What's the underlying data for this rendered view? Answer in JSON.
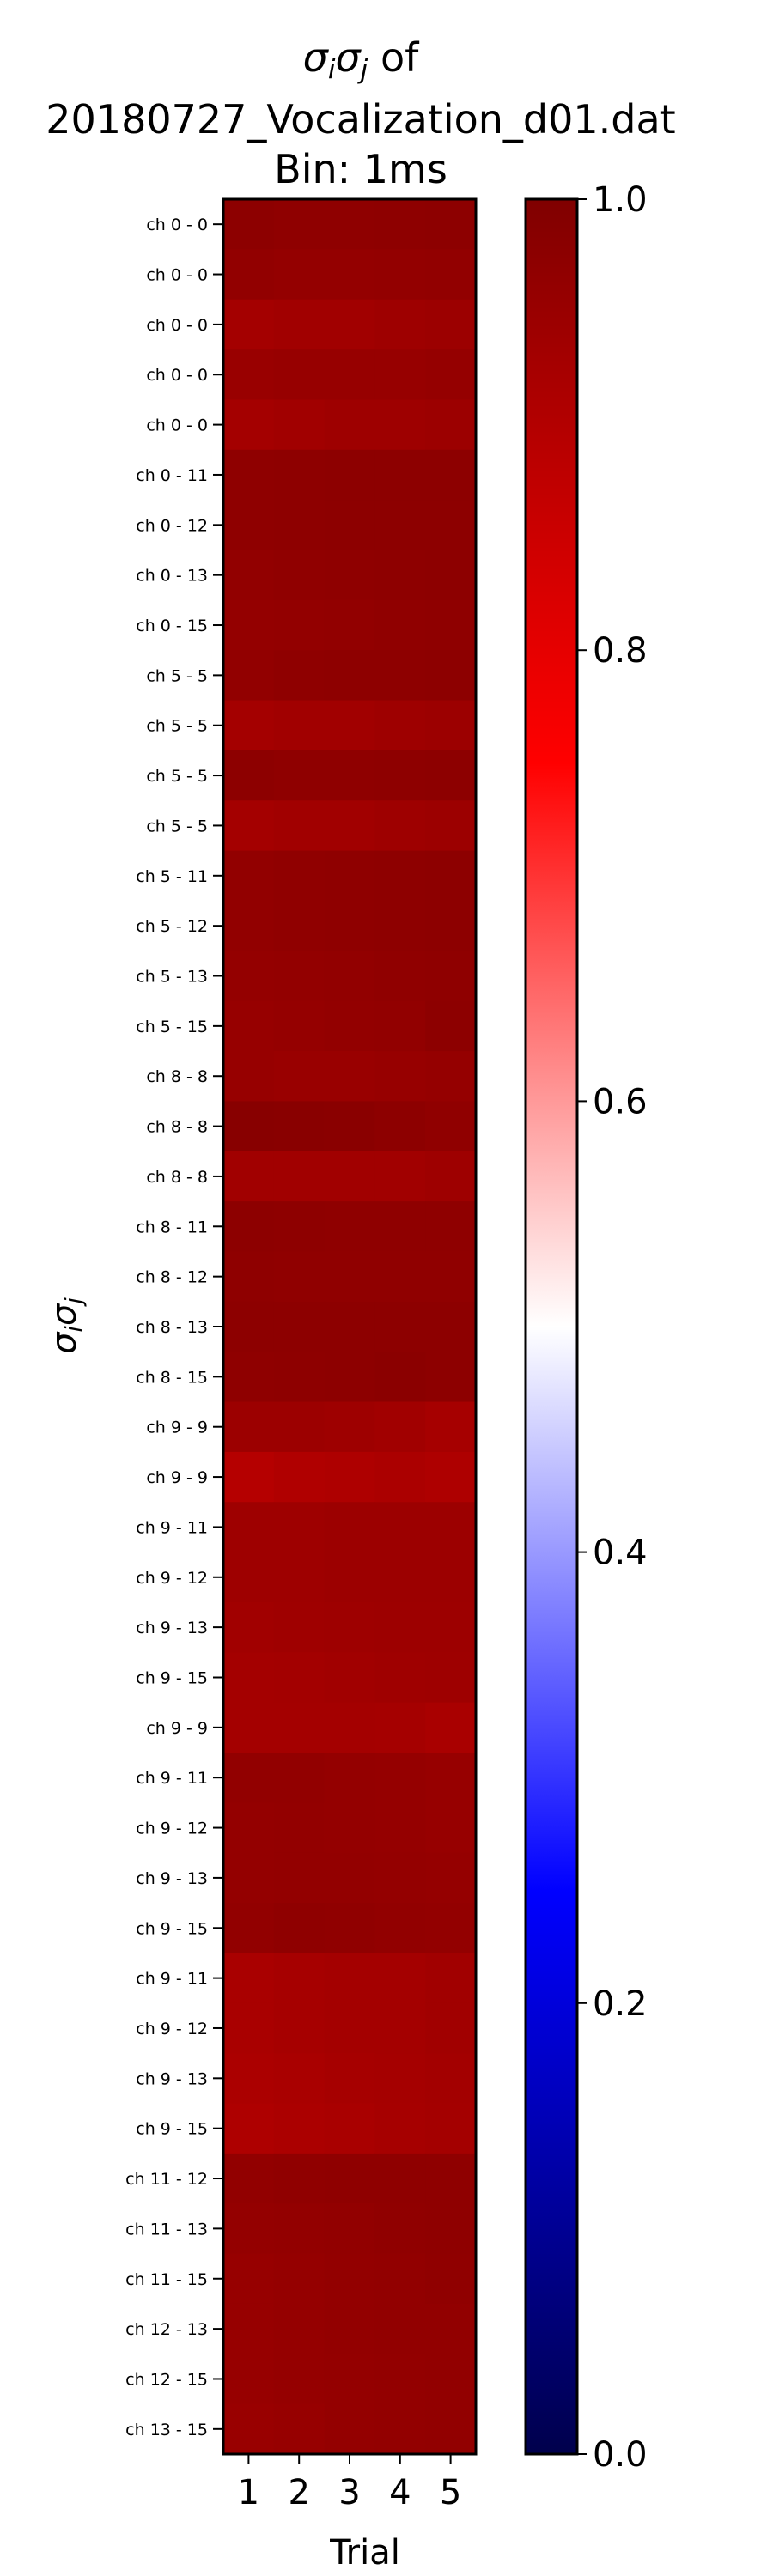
{
  "chart_data": {
    "type": "heatmap",
    "title_prefix": "of",
    "title_lines": [
      "20180727_Vocalization_d01.dat",
      "Bin: 1ms"
    ],
    "xlabel": "Trial",
    "x": [
      "1",
      "2",
      "3",
      "4",
      "5"
    ],
    "rows": [
      {
        "label": "ch  0 -  0",
        "values": [
          0.975,
          0.97,
          0.97,
          0.972,
          0.975
        ]
      },
      {
        "label": "ch  0 -  0",
        "values": [
          0.965,
          0.96,
          0.96,
          0.962,
          0.965
        ]
      },
      {
        "label": "ch  0 -  0",
        "values": [
          0.93,
          0.935,
          0.935,
          0.94,
          0.945
        ]
      },
      {
        "label": "ch  0 -  0",
        "values": [
          0.95,
          0.955,
          0.955,
          0.955,
          0.958
        ]
      },
      {
        "label": "ch  0 -  0",
        "values": [
          0.93,
          0.935,
          0.94,
          0.94,
          0.945
        ]
      },
      {
        "label": "ch  0 - 11",
        "values": [
          0.97,
          0.972,
          0.975,
          0.975,
          0.975
        ]
      },
      {
        "label": "ch  0 - 12",
        "values": [
          0.97,
          0.972,
          0.975,
          0.975,
          0.975
        ]
      },
      {
        "label": "ch  0 - 13",
        "values": [
          0.965,
          0.968,
          0.97,
          0.972,
          0.975
        ]
      },
      {
        "label": "ch  0 - 15",
        "values": [
          0.96,
          0.962,
          0.965,
          0.968,
          0.97
        ]
      },
      {
        "label": "ch  5 -  5",
        "values": [
          0.965,
          0.97,
          0.972,
          0.972,
          0.975
        ]
      },
      {
        "label": "ch  5 -  5",
        "values": [
          0.93,
          0.935,
          0.935,
          0.94,
          0.945
        ]
      },
      {
        "label": "ch  5 -  5",
        "values": [
          0.975,
          0.97,
          0.97,
          0.972,
          0.975
        ]
      },
      {
        "label": "ch  5 -  5",
        "values": [
          0.93,
          0.935,
          0.935,
          0.94,
          0.945
        ]
      },
      {
        "label": "ch  5 - 11",
        "values": [
          0.965,
          0.968,
          0.97,
          0.972,
          0.975
        ]
      },
      {
        "label": "ch  5 - 12",
        "values": [
          0.965,
          0.968,
          0.97,
          0.972,
          0.975
        ]
      },
      {
        "label": "ch  5 - 13",
        "values": [
          0.96,
          0.962,
          0.965,
          0.968,
          0.97
        ]
      },
      {
        "label": "ch  5 - 15",
        "values": [
          0.955,
          0.958,
          0.962,
          0.965,
          0.975
        ]
      },
      {
        "label": "ch  8 -  8",
        "values": [
          0.955,
          0.95,
          0.95,
          0.955,
          0.958
        ]
      },
      {
        "label": "ch  8 -  8",
        "values": [
          0.985,
          0.982,
          0.98,
          0.975,
          0.968
        ]
      },
      {
        "label": "ch  8 -  8",
        "values": [
          0.935,
          0.935,
          0.935,
          0.935,
          0.94
        ]
      },
      {
        "label": "ch  8 - 11",
        "values": [
          0.975,
          0.972,
          0.97,
          0.97,
          0.97
        ]
      },
      {
        "label": "ch  8 - 12",
        "values": [
          0.97,
          0.968,
          0.968,
          0.968,
          0.968
        ]
      },
      {
        "label": "ch  8 - 13",
        "values": [
          0.975,
          0.975,
          0.975,
          0.975,
          0.975
        ]
      },
      {
        "label": "ch  8 - 15",
        "values": [
          0.97,
          0.972,
          0.975,
          0.978,
          0.975
        ]
      },
      {
        "label": "ch  9 -  9",
        "values": [
          0.945,
          0.945,
          0.94,
          0.935,
          0.925
        ]
      },
      {
        "label": "ch  9 -  9",
        "values": [
          0.895,
          0.905,
          0.91,
          0.915,
          0.91
        ]
      },
      {
        "label": "ch  9 - 11",
        "values": [
          0.94,
          0.94,
          0.945,
          0.945,
          0.945
        ]
      },
      {
        "label": "ch  9 - 12",
        "values": [
          0.94,
          0.94,
          0.945,
          0.945,
          0.945
        ]
      },
      {
        "label": "ch  9 - 13",
        "values": [
          0.935,
          0.938,
          0.94,
          0.942,
          0.942
        ]
      },
      {
        "label": "ch  9 - 15",
        "values": [
          0.93,
          0.932,
          0.935,
          0.938,
          0.94
        ]
      },
      {
        "label": "ch  9 -  9",
        "values": [
          0.93,
          0.93,
          0.93,
          0.928,
          0.92
        ]
      },
      {
        "label": "ch  9 - 11",
        "values": [
          0.965,
          0.965,
          0.96,
          0.958,
          0.955
        ]
      },
      {
        "label": "ch  9 - 12",
        "values": [
          0.96,
          0.962,
          0.96,
          0.958,
          0.955
        ]
      },
      {
        "label": "ch  9 - 13",
        "values": [
          0.96,
          0.962,
          0.962,
          0.96,
          0.958
        ]
      },
      {
        "label": "ch  9 - 15",
        "values": [
          0.965,
          0.97,
          0.968,
          0.965,
          0.962
        ]
      },
      {
        "label": "ch  9 - 11",
        "values": [
          0.92,
          0.925,
          0.93,
          0.93,
          0.935
        ]
      },
      {
        "label": "ch  9 - 12",
        "values": [
          0.92,
          0.925,
          0.93,
          0.93,
          0.935
        ]
      },
      {
        "label": "ch  9 - 13",
        "values": [
          0.915,
          0.92,
          0.925,
          0.928,
          0.932
        ]
      },
      {
        "label": "ch  9 - 15",
        "values": [
          0.91,
          0.915,
          0.92,
          0.925,
          0.93
        ]
      },
      {
        "label": "ch 11 - 12",
        "values": [
          0.965,
          0.968,
          0.97,
          0.97,
          0.97
        ]
      },
      {
        "label": "ch 11 - 13",
        "values": [
          0.96,
          0.962,
          0.965,
          0.968,
          0.97
        ]
      },
      {
        "label": "ch 11 - 15",
        "values": [
          0.955,
          0.958,
          0.962,
          0.965,
          0.968
        ]
      },
      {
        "label": "ch 12 - 13",
        "values": [
          0.955,
          0.958,
          0.962,
          0.965,
          0.965
        ]
      },
      {
        "label": "ch 12 - 15",
        "values": [
          0.955,
          0.958,
          0.96,
          0.962,
          0.965
        ]
      },
      {
        "label": "ch 13 - 15",
        "values": [
          0.95,
          0.955,
          0.96,
          0.962,
          0.965
        ]
      }
    ],
    "colorbar": {
      "colormap": "seismic",
      "range": [
        0.0,
        1.0
      ],
      "ticks": [
        "1.0",
        "0.8",
        "0.6",
        "0.4",
        "0.2",
        "0.0"
      ]
    },
    "grid": false,
    "legend": "none"
  }
}
